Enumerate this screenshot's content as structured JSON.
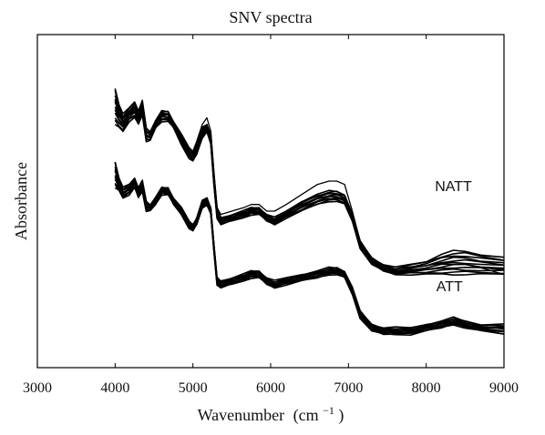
{
  "chart_data": {
    "type": "line",
    "title": "SNV spectra",
    "xlabel": "Wavenumber",
    "xlabel_unit": "(cm",
    "xlabel_sup": "−1",
    "xlabel_close": ")",
    "ylabel": "Absorbance",
    "xlim": [
      3000,
      9000
    ],
    "ylim": [
      0,
      100
    ],
    "xticks": [
      "3000",
      "4000",
      "5000",
      "6000",
      "7000",
      "8000",
      "9000"
    ],
    "yticks_visible": false,
    "grid": false,
    "legend": "none",
    "line_color": "#000000",
    "annotations": [
      {
        "text": "NATT",
        "x": 8350,
        "y": 53
      },
      {
        "text": "ATT",
        "x": 8300,
        "y": 23
      }
    ],
    "groups": [
      {
        "label": "NATT",
        "x": [
          4000,
          4050,
          4100,
          4180,
          4250,
          4300,
          4350,
          4400,
          4450,
          4520,
          4600,
          4680,
          4750,
          4850,
          4950,
          5000,
          5050,
          5120,
          5180,
          5230,
          5270,
          5310,
          5360,
          5500,
          5650,
          5750,
          5850,
          5950,
          6050,
          6200,
          6400,
          6600,
          6750,
          6850,
          6950,
          7050,
          7150,
          7300,
          7450,
          7600,
          7800,
          8000,
          8200,
          8350,
          8500,
          8700,
          9000
        ],
        "y_max": [
          84,
          79,
          76,
          78,
          80,
          77,
          80,
          72,
          71,
          74,
          77,
          77,
          74,
          70,
          66,
          65,
          67,
          72,
          73,
          70,
          58,
          48,
          45,
          46,
          47,
          48,
          48,
          46,
          45,
          47,
          50,
          52,
          53,
          53,
          52,
          46,
          38,
          33,
          31,
          30,
          31,
          32,
          34,
          35,
          35,
          34,
          33
        ],
        "y_min": [
          73,
          72,
          71,
          74,
          75,
          73,
          76,
          68,
          68,
          72,
          74,
          74,
          72,
          67,
          63,
          62,
          64,
          69,
          71,
          67,
          55,
          45,
          43,
          44,
          45,
          46,
          46,
          44,
          43,
          45,
          47,
          49,
          50,
          50,
          49,
          44,
          36,
          31,
          29,
          28,
          28,
          28,
          28,
          28,
          28,
          28,
          28
        ],
        "outlier_upper": [
          80,
          76,
          74,
          76,
          78,
          75,
          78,
          71,
          70,
          73,
          76,
          76,
          73,
          69,
          66,
          65,
          68,
          73,
          75,
          71,
          59,
          48,
          46,
          47,
          48,
          49,
          49,
          47,
          47,
          49,
          52,
          55,
          56,
          56,
          55,
          47,
          38,
          32,
          30,
          29,
          29,
          30,
          31,
          31,
          31,
          30,
          28
        ]
      },
      {
        "label": "ATT",
        "x": [
          4000,
          4050,
          4100,
          4180,
          4250,
          4300,
          4350,
          4400,
          4450,
          4520,
          4600,
          4680,
          4750,
          4850,
          4950,
          5000,
          5050,
          5120,
          5180,
          5230,
          5270,
          5310,
          5360,
          5500,
          5650,
          5750,
          5850,
          5950,
          6050,
          6200,
          6400,
          6600,
          6750,
          6850,
          6950,
          7050,
          7150,
          7300,
          7450,
          7600,
          7800,
          8000,
          8200,
          8350,
          8500,
          8700,
          9000
        ],
        "y_max": [
          62,
          57,
          54,
          55,
          57,
          54,
          56,
          50,
          49,
          51,
          54,
          54,
          51,
          48,
          44,
          43,
          45,
          50,
          51,
          48,
          37,
          27,
          26,
          27,
          28,
          29,
          29,
          27,
          26,
          27,
          28,
          29,
          30,
          30,
          29,
          24,
          17,
          13,
          12,
          12,
          12,
          13,
          14,
          15,
          14,
          13,
          13
        ],
        "y_min": [
          54,
          53,
          51,
          52,
          54,
          51,
          53,
          47,
          47,
          49,
          52,
          52,
          49,
          46,
          42,
          41,
          43,
          48,
          49,
          46,
          35,
          25,
          24,
          25,
          26,
          27,
          27,
          25,
          24,
          25,
          26,
          27,
          28,
          28,
          27,
          22,
          15,
          11,
          10,
          10,
          10,
          11,
          12,
          13,
          12,
          11,
          10
        ]
      }
    ]
  }
}
